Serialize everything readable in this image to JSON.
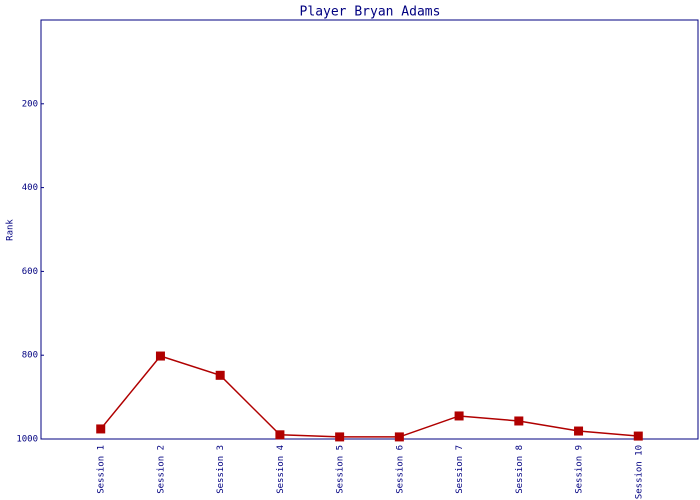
{
  "chart_data": {
    "type": "line",
    "title": "Player Bryan Adams",
    "y_label": "Rank",
    "categories": [
      "Session 1",
      "Session 2",
      "Session 3",
      "Session 4",
      "Session 5",
      "Session 6",
      "Session 7",
      "Session 8",
      "Session 9",
      "Session 10"
    ],
    "series": [
      {
        "name": "Bryan Adams",
        "color": "#b00000",
        "values": [
          976,
          802,
          848,
          990,
          995,
          995,
          945,
          957,
          981,
          993
        ]
      }
    ],
    "ylim": [
      1000,
      0
    ],
    "yticks": [
      200,
      400,
      600,
      800,
      1000
    ],
    "grid": false
  }
}
